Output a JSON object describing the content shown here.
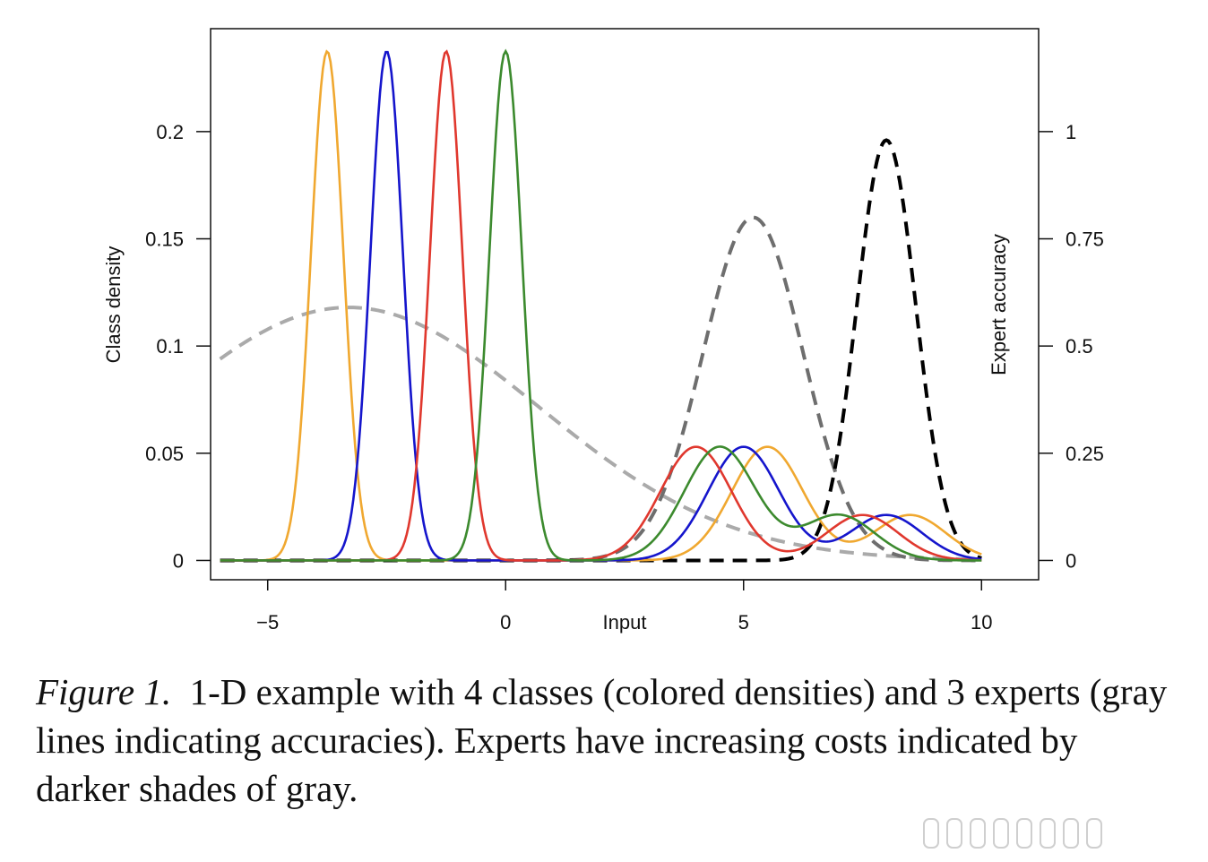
{
  "chart_data": {
    "type": "line",
    "xlabel": "Input",
    "ylabel": "Class density",
    "y2label": "Expert accuracy",
    "xlim": [
      -6.2,
      11.2
    ],
    "ylim": [
      -0.009,
      0.248
    ],
    "y2lim": [
      -0.045,
      1.24
    ],
    "xticks": [
      -5,
      0,
      5,
      10
    ],
    "xtick_labels": [
      "−5",
      "0",
      "5",
      "10"
    ],
    "yticks": [
      0,
      0.05,
      0.1,
      0.15,
      0.2
    ],
    "ytick_labels": [
      "0",
      "0.05",
      "0.1",
      "0.15",
      "0.2"
    ],
    "y2ticks": [
      0,
      0.25,
      0.5,
      0.75,
      1
    ],
    "y2tick_labels": [
      "0",
      "0.25",
      "0.5",
      "0.75",
      "1"
    ],
    "x_range": [
      -6,
      10
    ],
    "classes": [
      {
        "color": "#f0a830",
        "components": [
          {
            "mean": -3.75,
            "sd": 0.34,
            "weight": 0.204
          },
          {
            "mean": 5.5,
            "sd": 0.75,
            "weight": 0.1
          },
          {
            "mean": 8.5,
            "sd": 0.75,
            "weight": 0.04
          }
        ]
      },
      {
        "color": "#1515cc",
        "components": [
          {
            "mean": -2.5,
            "sd": 0.34,
            "weight": 0.204
          },
          {
            "mean": 5.0,
            "sd": 0.75,
            "weight": 0.1
          },
          {
            "mean": 8.0,
            "sd": 0.75,
            "weight": 0.04
          }
        ]
      },
      {
        "color": "#e0382e",
        "components": [
          {
            "mean": -1.25,
            "sd": 0.34,
            "weight": 0.204
          },
          {
            "mean": 4.0,
            "sd": 0.75,
            "weight": 0.1
          },
          {
            "mean": 7.5,
            "sd": 0.75,
            "weight": 0.04
          }
        ]
      },
      {
        "color": "#3c8a2e",
        "components": [
          {
            "mean": 0.0,
            "sd": 0.34,
            "weight": 0.204
          },
          {
            "mean": 4.5,
            "sd": 0.75,
            "weight": 0.1
          },
          {
            "mean": 7.0,
            "sd": 0.75,
            "weight": 0.04
          }
        ]
      }
    ],
    "experts": [
      {
        "color": "#aaaaaa",
        "peak_x": -3.3,
        "peak_accuracy": 0.59,
        "sd": 4.0,
        "dash": "16 10"
      },
      {
        "color": "#6e6e6e",
        "peak_x": 5.2,
        "peak_accuracy": 0.8,
        "sd": 1.05,
        "dash": "16 10"
      },
      {
        "color": "#000000",
        "peak_x": 8.0,
        "peak_accuracy": 0.98,
        "sd": 0.62,
        "dash": "16 10"
      }
    ]
  },
  "caption": {
    "label": "Figure 1.",
    "text": "1-D example with 4 classes (colored densities) and 3 experts (gray lines indicating accuracies). Experts have increasing costs indicated by darker shades of gray."
  }
}
